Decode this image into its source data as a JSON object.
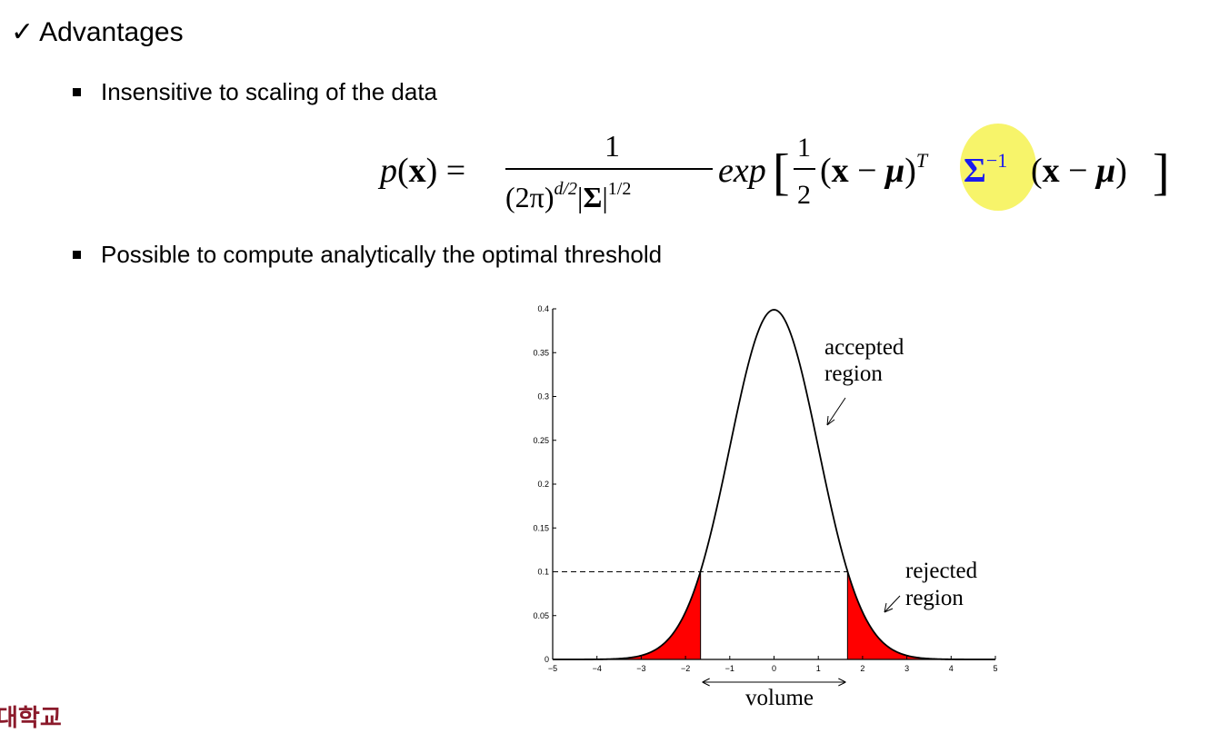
{
  "heading": {
    "check": "✓",
    "text": "Advantages"
  },
  "bullets": [
    {
      "text": "Insensitive to scaling of the data"
    },
    {
      "text": "Possible to compute analytically the optimal threshold"
    }
  ],
  "formula": {
    "lhs": "p(x) =",
    "numerator": "1",
    "denominator": "(2π)^{d/2}|Σ|^{1/2}",
    "rhs": "exp[ 1/2 (x − μ)^T Σ^{−1} (x − μ) ]",
    "highlight_color": "#f6f35a",
    "sigma_color": "#1a1aee"
  },
  "chart_data": {
    "type": "area",
    "x_ticks": [
      "−5",
      "−4",
      "−3",
      "−2",
      "−1",
      "0",
      "1",
      "2",
      "3",
      "4",
      "5"
    ],
    "y_ticks": [
      "0",
      "0.05",
      "0.1",
      "0.15",
      "0.2",
      "0.25",
      "0.3",
      "0.35",
      "0.4"
    ],
    "xlim": [
      -5,
      5
    ],
    "ylim": [
      0,
      0.4
    ],
    "threshold": 0.1,
    "curve": "standard normal density",
    "rejected_x_abs_min": 1.66,
    "fill_color": "#ff0000",
    "annotations": {
      "accepted": [
        "accepted",
        "region"
      ],
      "rejected": [
        "rejected",
        "region"
      ],
      "volume": "volume"
    }
  },
  "footer": {
    "text": "대학교"
  }
}
